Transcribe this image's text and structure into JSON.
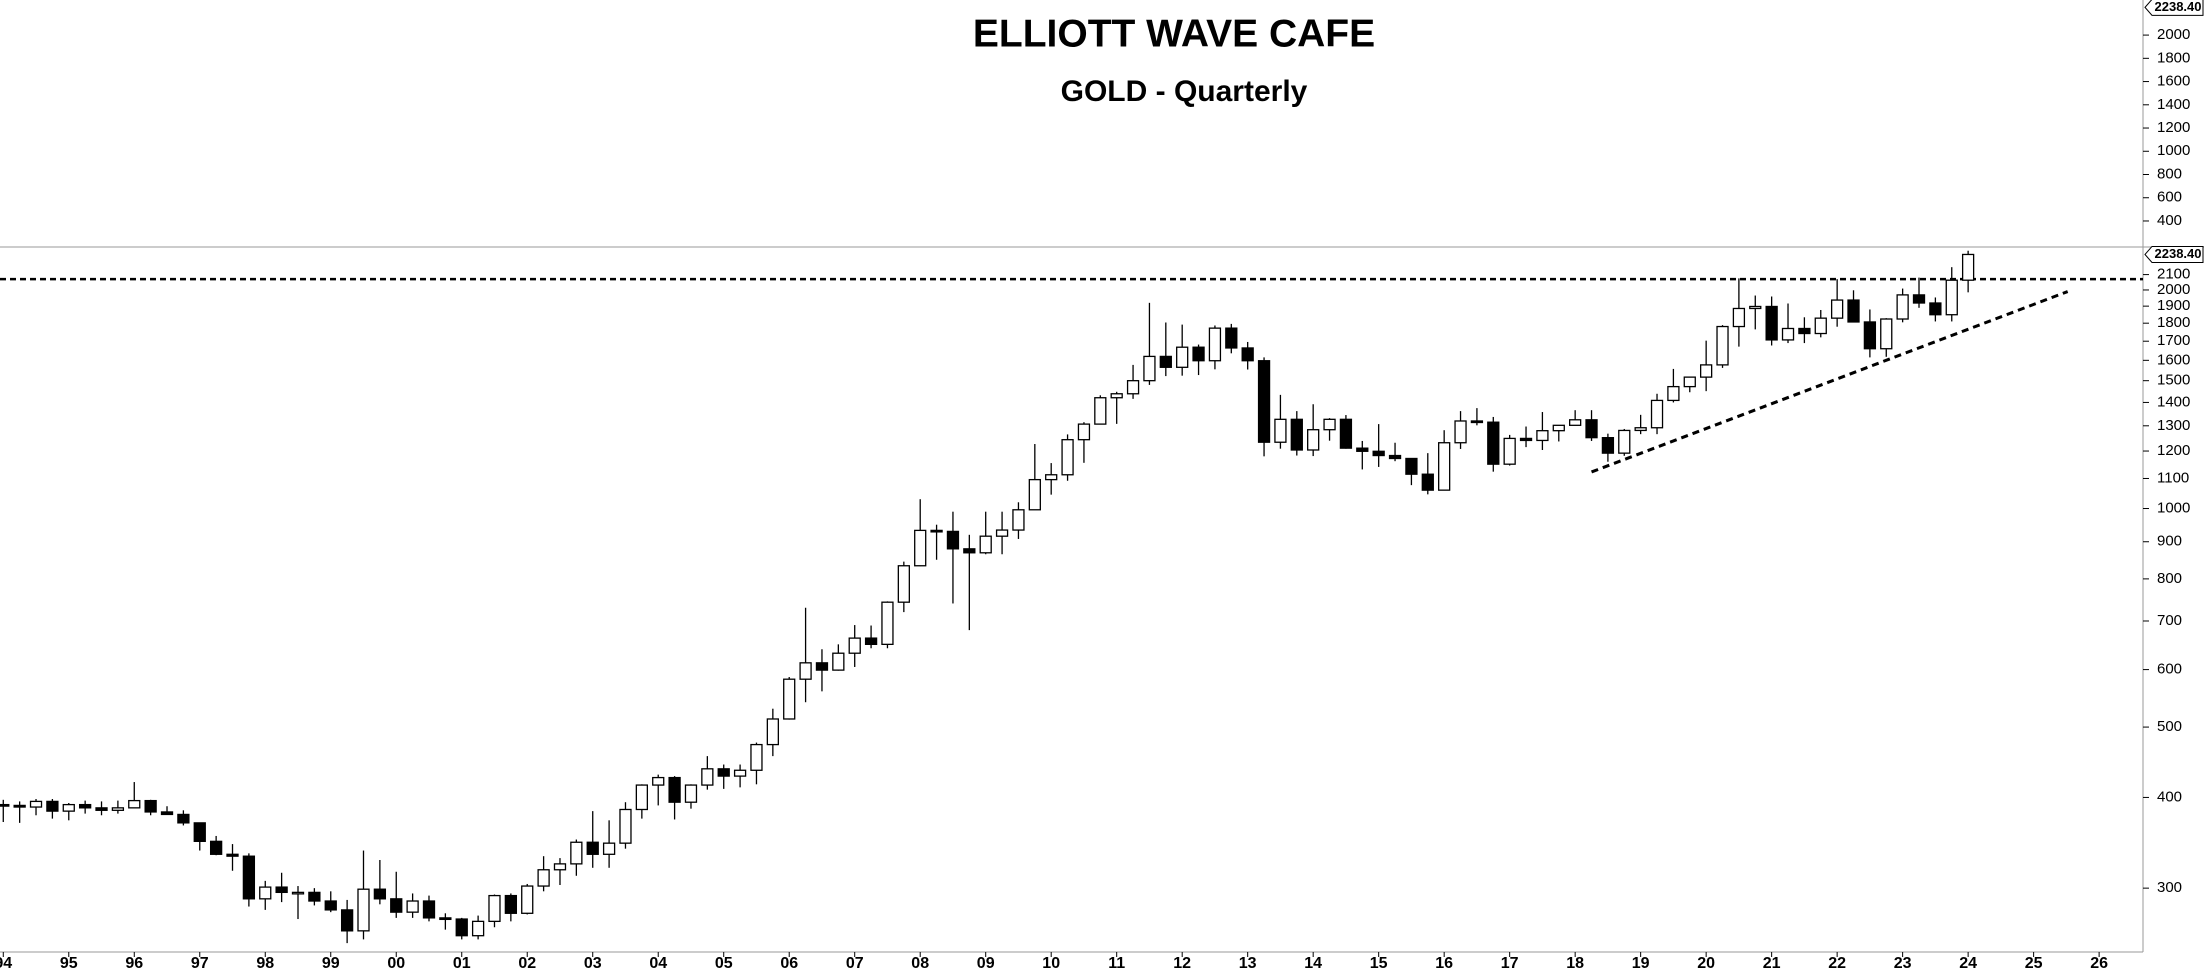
{
  "chart_data": {
    "type": "candlestick",
    "title": "ELLIOTT WAVE CAFE",
    "subtitle": "GOLD - Quarterly",
    "log_scale": true,
    "up_color": "#ffffff",
    "down_color": "#000000",
    "outline_color": "#000000",
    "x": [
      1994,
      1994.25,
      1994.5,
      1994.75,
      1995,
      1995.25,
      1995.5,
      1995.75,
      1996,
      1996.25,
      1996.5,
      1996.75,
      1997,
      1997.25,
      1997.5,
      1997.75,
      1998,
      1998.25,
      1998.5,
      1998.75,
      1999,
      1999.25,
      1999.5,
      1999.75,
      2000,
      2000.25,
      2000.5,
      2000.75,
      2001,
      2001.25,
      2001.5,
      2001.75,
      2002,
      2002.25,
      2002.5,
      2002.75,
      2003,
      2003.25,
      2003.5,
      2003.75,
      2004,
      2004.25,
      2004.5,
      2004.75,
      2005,
      2005.25,
      2005.5,
      2005.75,
      2006,
      2006.25,
      2006.5,
      2006.75,
      2007,
      2007.25,
      2007.5,
      2007.75,
      2008,
      2008.25,
      2008.5,
      2008.75,
      2009,
      2009.25,
      2009.5,
      2009.75,
      2010,
      2010.25,
      2010.5,
      2010.75,
      2011,
      2011.25,
      2011.5,
      2011.75,
      2012,
      2012.25,
      2012.5,
      2012.75,
      2013,
      2013.25,
      2013.5,
      2013.75,
      2014,
      2014.25,
      2014.5,
      2014.75,
      2015,
      2015.25,
      2015.5,
      2015.75,
      2016,
      2016.25,
      2016.5,
      2016.75,
      2017,
      2017.25,
      2017.5,
      2017.75,
      2018,
      2018.25,
      2018.5,
      2018.75,
      2019,
      2019.25,
      2019.5,
      2019.75,
      2020,
      2020.25,
      2020.5,
      2020.75,
      2021,
      2021.25,
      2021.5,
      2021.75,
      2022,
      2022.25,
      2022.5,
      2022.75,
      2023,
      2023.25,
      2023.5,
      2023.75,
      2024
    ],
    "open": [
      391,
      390,
      388,
      395,
      383,
      391,
      387,
      384,
      387,
      396,
      382,
      379,
      369,
      348,
      334,
      332,
      290,
      301,
      296,
      296,
      288,
      280,
      262,
      299,
      290,
      278,
      288,
      273,
      272,
      258,
      270,
      293,
      277,
      302,
      318,
      324,
      347,
      334,
      346,
      385,
      416,
      426,
      394,
      416,
      438,
      428,
      436,
      473,
      513,
      582,
      613,
      599,
      632,
      663,
      650,
      743,
      834,
      933,
      930,
      880,
      869,
      916,
      934,
      996,
      1096,
      1113,
      1244,
      1307,
      1421,
      1439,
      1500,
      1620,
      1565,
      1668,
      1598,
      1772,
      1664,
      1598,
      1234,
      1327,
      1204,
      1284,
      1327,
      1211,
      1199,
      1183,
      1172,
      1115,
      1060,
      1232,
      1320,
      1315,
      1151,
      1249,
      1241,
      1280,
      1302,
      1325,
      1252,
      1192,
      1281,
      1292,
      1409,
      1472,
      1517,
      1577,
      1781,
      1886,
      1898,
      1707,
      1770,
      1742,
      1829,
      1937,
      1807,
      1660,
      1824,
      1969,
      1919,
      1849,
      2063
    ],
    "high": [
      397,
      395,
      398,
      398,
      393,
      396,
      395,
      396,
      420,
      397,
      389,
      384,
      368,
      354,
      345,
      335,
      307,
      315,
      302,
      300,
      297,
      289,
      338,
      328,
      316,
      295,
      293,
      277,
      273,
      275,
      294,
      295,
      304,
      332,
      330,
      350,
      383,
      372,
      394,
      417,
      430,
      428,
      417,
      456,
      444,
      444,
      476,
      530,
      586,
      730,
      640,
      650,
      691,
      690,
      745,
      845,
      1030,
      950,
      990,
      920,
      990,
      990,
      1020,
      1227,
      1155,
      1265,
      1315,
      1432,
      1448,
      1577,
      1920,
      1804,
      1792,
      1682,
      1787,
      1796,
      1696,
      1615,
      1434,
      1362,
      1392,
      1332,
      1345,
      1239,
      1307,
      1232,
      1170,
      1192,
      1282,
      1362,
      1375,
      1337,
      1263,
      1297,
      1358,
      1300,
      1366,
      1366,
      1268,
      1287,
      1346,
      1439,
      1557,
      1519,
      1703,
      1789,
      2075,
      1965,
      1959,
      1916,
      1834,
      1877,
      2070,
      1998,
      1880,
      1829,
      2009,
      2080,
      1953,
      2150,
      2265
    ],
    "low": [
      370,
      369,
      378,
      374,
      372,
      380,
      378,
      380,
      392,
      378,
      379,
      366,
      338,
      333,
      317,
      283,
      280,
      287,
      272,
      284,
      278,
      252,
      255,
      285,
      273,
      273,
      270,
      263,
      255,
      255,
      265,
      270,
      276,
      297,
      303,
      312,
      320,
      320,
      340,
      374,
      390,
      373,
      386,
      410,
      411,
      413,
      417,
      456,
      512,
      541,
      560,
      598,
      605,
      642,
      642,
      720,
      833,
      850,
      740,
      680,
      865,
      865,
      908,
      996,
      1045,
      1092,
      1156,
      1313,
      1308,
      1416,
      1480,
      1522,
      1524,
      1527,
      1555,
      1636,
      1554,
      1180,
      1209,
      1183,
      1181,
      1240,
      1209,
      1132,
      1141,
      1162,
      1077,
      1046,
      1062,
      1208,
      1302,
      1124,
      1146,
      1215,
      1204,
      1237,
      1306,
      1239,
      1160,
      1182,
      1266,
      1266,
      1400,
      1446,
      1451,
      1562,
      1671,
      1765,
      1677,
      1690,
      1690,
      1721,
      1780,
      1805,
      1615,
      1618,
      1805,
      1890,
      1810,
      1810,
      1985
    ],
    "close": [
      390,
      388,
      395,
      383,
      391,
      387,
      384,
      387,
      396,
      382,
      379,
      369,
      348,
      334,
      332,
      290,
      301,
      296,
      296,
      288,
      280,
      262,
      299,
      290,
      278,
      288,
      273,
      272,
      258,
      270,
      293,
      277,
      302,
      318,
      324,
      347,
      334,
      346,
      385,
      416,
      426,
      394,
      416,
      438,
      428,
      436,
      473,
      513,
      582,
      613,
      599,
      632,
      663,
      650,
      743,
      834,
      933,
      930,
      880,
      869,
      916,
      934,
      996,
      1096,
      1113,
      1244,
      1307,
      1421,
      1439,
      1500,
      1620,
      1565,
      1668,
      1598,
      1772,
      1664,
      1598,
      1234,
      1327,
      1204,
      1284,
      1327,
      1211,
      1199,
      1183,
      1172,
      1115,
      1060,
      1232,
      1320,
      1315,
      1151,
      1249,
      1241,
      1280,
      1302,
      1325,
      1252,
      1192,
      1281,
      1292,
      1409,
      1472,
      1517,
      1577,
      1781,
      1886,
      1898,
      1707,
      1770,
      1742,
      1829,
      1937,
      1807,
      1660,
      1824,
      1969,
      1919,
      1849,
      2063,
      2238.4
    ],
    "xlim": [
      1993.95,
      2026.67
    ],
    "xticks": [
      {
        "value": 1994,
        "label": "94"
      },
      {
        "value": 1995,
        "label": "95"
      },
      {
        "value": 1996,
        "label": "96"
      },
      {
        "value": 1997,
        "label": "97"
      },
      {
        "value": 1998,
        "label": "98"
      },
      {
        "value": 1999,
        "label": "99"
      },
      {
        "value": 2000,
        "label": "00"
      },
      {
        "value": 2001,
        "label": "01"
      },
      {
        "value": 2002,
        "label": "02"
      },
      {
        "value": 2003,
        "label": "03"
      },
      {
        "value": 2004,
        "label": "04"
      },
      {
        "value": 2005,
        "label": "05"
      },
      {
        "value": 2006,
        "label": "06"
      },
      {
        "value": 2007,
        "label": "07"
      },
      {
        "value": 2008,
        "label": "08"
      },
      {
        "value": 2009,
        "label": "09"
      },
      {
        "value": 2010,
        "label": "10"
      },
      {
        "value": 2011,
        "label": "11"
      },
      {
        "value": 2012,
        "label": "12"
      },
      {
        "value": 2013,
        "label": "13"
      },
      {
        "value": 2014,
        "label": "14"
      },
      {
        "value": 2015,
        "label": "15"
      },
      {
        "value": 2016,
        "label": "16"
      },
      {
        "value": 2017,
        "label": "17"
      },
      {
        "value": 2018,
        "label": "18"
      },
      {
        "value": 2019,
        "label": "19"
      },
      {
        "value": 2020,
        "label": "20"
      },
      {
        "value": 2021,
        "label": "21"
      },
      {
        "value": 2022,
        "label": "22"
      },
      {
        "value": 2023,
        "label": "23"
      },
      {
        "value": 2024,
        "label": "24"
      },
      {
        "value": 2025,
        "label": "25"
      },
      {
        "value": 2026,
        "label": "26"
      }
    ],
    "ylim": [
      245,
      2292
    ],
    "yticks": [
      300,
      400,
      500,
      600,
      700,
      800,
      900,
      1000,
      1100,
      1200,
      1300,
      1400,
      1500,
      1600,
      1700,
      1800,
      1900,
      2000,
      2100
    ],
    "last_price": {
      "value": 2238.4,
      "label": "2238.40"
    },
    "resistance_level": {
      "value": 2070,
      "style": "dashed"
    },
    "trendline": {
      "x": [
        2018.25,
        2025.52
      ],
      "y": [
        1123,
        1990
      ],
      "style": "dashed"
    },
    "upper_panel": {
      "ylim": [
        176,
        2302
      ],
      "yticks": [
        400,
        600,
        800,
        1000,
        1200,
        1400,
        1600,
        1800,
        2000
      ]
    }
  }
}
